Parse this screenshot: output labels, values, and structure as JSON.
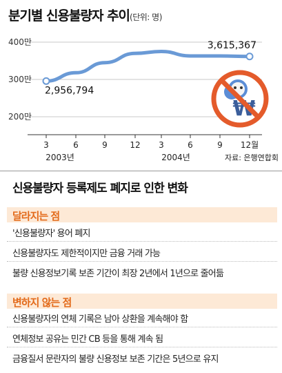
{
  "chart_data": {
    "type": "line",
    "title": "분기별 신용불량자 추이",
    "unit": "(단위: 명)",
    "x": [
      "3",
      "6",
      "9",
      "12",
      "3",
      "6",
      "9",
      "12월"
    ],
    "year_labels": [
      "2003년",
      "2004년"
    ],
    "series": [
      {
        "values": [
          2956794,
          3180000,
          3450000,
          3700000,
          3750000,
          3630000,
          3630000,
          3615367
        ]
      }
    ],
    "data_labels": [
      "2,956,794",
      "3,615,367"
    ],
    "yticks": [
      {
        "value": 2000000,
        "label": "200만"
      },
      {
        "value": 3000000,
        "label": "300만"
      },
      {
        "value": 4000000,
        "label": "400만"
      }
    ],
    "ylim": [
      2000000,
      4000000
    ],
    "grid": true,
    "line_color": "#6a9ad6",
    "source": "자료: 은행연합회"
  },
  "changes": {
    "title": "신용불량자 등록제도 폐지로 인한 변화",
    "changing": {
      "heading": "달라지는 점",
      "items": [
        "'신용불량자' 용어 폐지",
        "신용불량자도 제한적이지만 금융 거래 가능",
        "불량 신용정보기록 보존 기간이 최장 2년에서 1년으로 줄어듦"
      ]
    },
    "unchanged": {
      "heading": "변하지 않는 점",
      "items": [
        "신용불량자의 연체 기록은 남아 상환을 계속해야 함",
        "연체정보 공유는 민간 CB 등을 통해 계속 됨",
        "금융질서 문란자의 불량 신용정보 보존 기간은 5년으로 유지"
      ]
    },
    "accent_color": "#e36a1a",
    "band_color": "#fde9d6"
  }
}
